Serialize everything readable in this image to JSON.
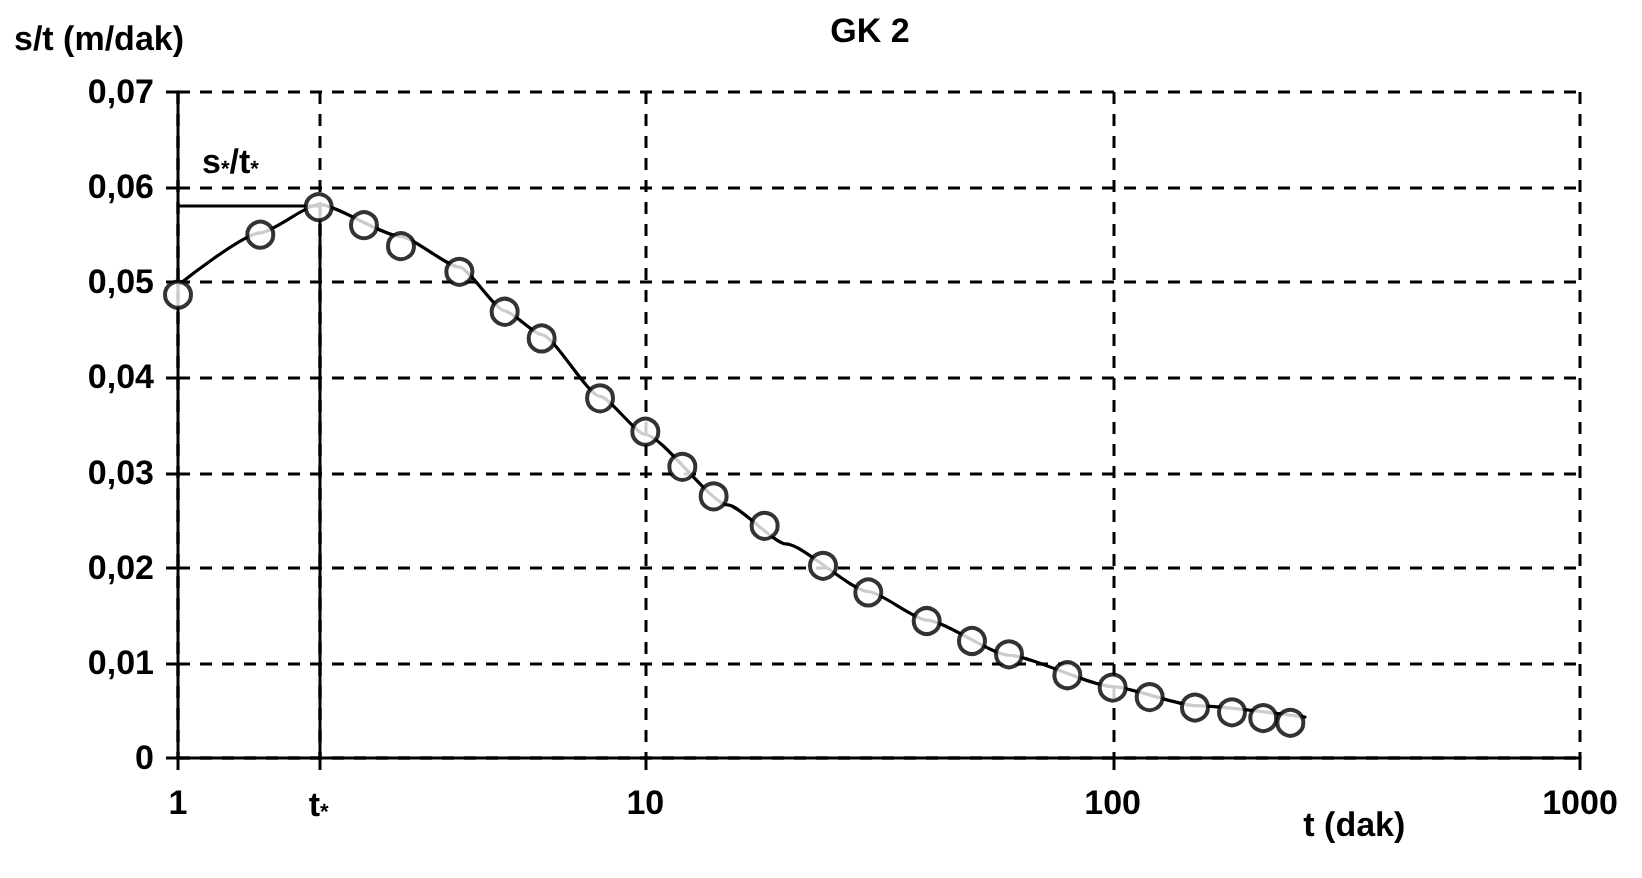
{
  "chart_data": {
    "type": "scatter",
    "title": "GK 2",
    "xlabel": "t (dak)",
    "ylabel": "s/t (m/dak)",
    "log": "x",
    "grid": true,
    "line_style": "dashed",
    "xlim": [
      1,
      1000
    ],
    "xticks": [
      1,
      {
        "value": 2,
        "label": "t$_{*}$"
      },
      10,
      100,
      1000
    ],
    "ylim": [
      0,
      0.07
    ],
    "yticks": [
      0,
      {
        "value": 0.01,
        "label": "0,01"
      },
      {
        "value": 0.02,
        "label": "0,02"
      },
      {
        "value": 0.03,
        "label": "0,03"
      },
      {
        "value": 0.04,
        "label": "0,04"
      },
      {
        "value": 0.05,
        "label": "0,05"
      },
      {
        "value": 0.06,
        "label": "0,06"
      },
      {
        "value": 0.07,
        "label": "0,07"
      }
    ],
    "ref_lines": [
      {
        "axis": "y",
        "value": 0.058,
        "label": "s$_{*}$/t$_{*}$",
        "color": "#000000",
        "line_style": "solid"
      },
      {
        "axis": "x",
        "value": 2,
        "label": null,
        "color": "#000000",
        "line_style": "solid"
      }
    ],
    "series": [
      {
        "marker": "circle",
        "color": "#000000",
        "x": [
          1,
          1.5,
          2,
          2.5,
          3,
          4,
          5,
          6,
          8,
          10,
          12,
          14,
          18,
          24,
          30,
          40,
          50,
          60,
          80,
          100,
          120,
          150,
          180,
          210,
          240
        ],
        "values": [
          0.0487,
          0.055,
          0.0579,
          0.056,
          0.0538,
          0.0511,
          0.0469,
          0.0441,
          0.0378,
          0.0343,
          0.0306,
          0.0275,
          0.0244,
          0.0202,
          0.0174,
          0.0144,
          0.0123,
          0.0109,
          0.0087,
          0.0074,
          0.0064,
          0.0053,
          0.0048,
          0.0042,
          0.0037
        ]
      },
      {
        "type": "line",
        "marker": "none",
        "line_style": "solid",
        "color": "#000000",
        "x": [
          1,
          1.5,
          2,
          3,
          4,
          5,
          6,
          8,
          10,
          15,
          20,
          30,
          40,
          60,
          100,
          150,
          258
        ],
        "values": [
          0.0497,
          0.0552,
          0.0582,
          0.0548,
          0.0516,
          0.047,
          0.0445,
          0.038,
          0.034,
          0.0266,
          0.0225,
          0.0175,
          0.0145,
          0.0108,
          0.0075,
          0.0055,
          0.0043
        ]
      }
    ]
  }
}
